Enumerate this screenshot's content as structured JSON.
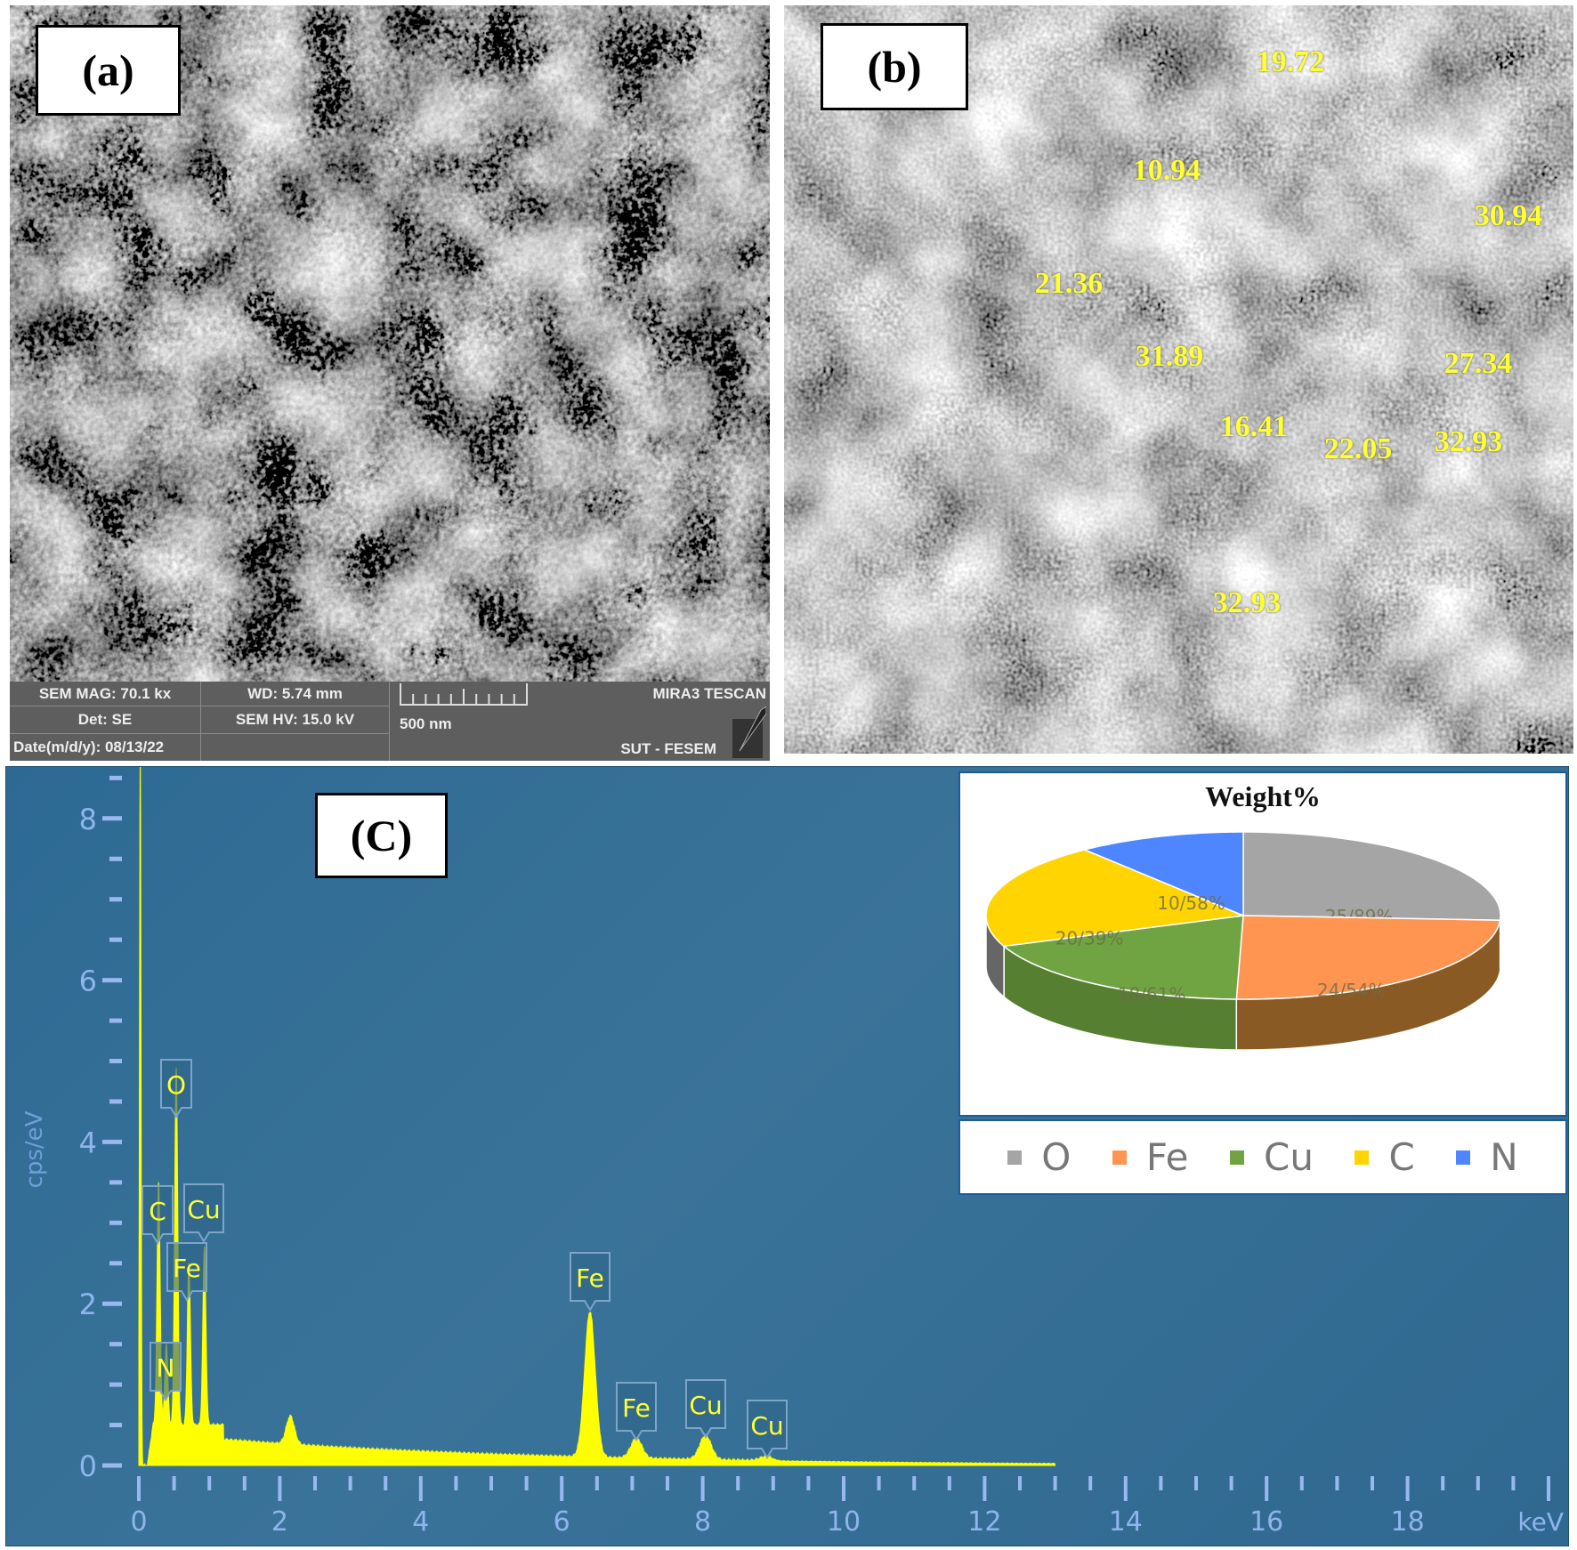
{
  "panel_a": {
    "label": "(a)",
    "info": {
      "mag": "SEM MAG: 70.1 kx",
      "wd": "WD: 5.74 mm",
      "det": "Det: SE",
      "hv": "SEM HV: 15.0 kV",
      "date": "Date(m/d/y): 08/13/22",
      "scale": "500 nm",
      "instrument": "MIRA3 TESCAN",
      "lab": "SUT - FESEM"
    }
  },
  "panel_b": {
    "label": "(b)",
    "size_labels": [
      "19.72",
      "10.94",
      "30.94",
      "21.36",
      "31.89",
      "27.34",
      "16.41",
      "22.05",
      "32.93",
      "32.93"
    ]
  },
  "panel_c": {
    "label": "(C)"
  },
  "chart_data": [
    {
      "type": "line",
      "title": "",
      "xlabel": "keV",
      "ylabel": "cps/eV",
      "xlim": [
        0,
        20
      ],
      "ylim": [
        0,
        8.5
      ],
      "x_ticks": [
        "0",
        "2",
        "4",
        "6",
        "8",
        "10",
        "12",
        "14",
        "16",
        "18"
      ],
      "y_ticks": [
        "0",
        "2",
        "4",
        "6",
        "8"
      ],
      "grid": false,
      "line_color": "#ffff00",
      "peaks": [
        {
          "element": "C",
          "kev": 0.28,
          "cps": 3.0
        },
        {
          "element": "N",
          "kev": 0.39,
          "cps": 1.0
        },
        {
          "element": "O",
          "kev": 0.53,
          "cps": 4.4
        },
        {
          "element": "Fe",
          "kev": 0.71,
          "cps": 2.0
        },
        {
          "element": "Cu",
          "kev": 0.93,
          "cps": 2.2
        },
        {
          "element": "Fe",
          "kev": 6.4,
          "cps": 1.8
        },
        {
          "element": "Fe",
          "kev": 7.06,
          "cps": 0.25
        },
        {
          "element": "Cu",
          "kev": 8.04,
          "cps": 0.3
        },
        {
          "element": "Cu",
          "kev": 8.9,
          "cps": 0.05
        }
      ],
      "unlabeled_peaks": [
        {
          "kev": 2.15,
          "cps": 0.35
        }
      ]
    },
    {
      "type": "pie",
      "title": "Weight%",
      "legend_placement": "bottom",
      "slices": [
        {
          "name": "O",
          "value": 25.89,
          "label": "25/89%",
          "color": "#a5a5a5"
        },
        {
          "name": "Fe",
          "value": 24.54,
          "label": "24/54%",
          "color": "#ff9550"
        },
        {
          "name": "Cu",
          "value": 18.61,
          "label": "18/61%",
          "color": "#70a443"
        },
        {
          "name": "C",
          "value": 20.39,
          "label": "20/39%",
          "color": "#ffd400"
        },
        {
          "name": "N",
          "value": 10.58,
          "label": "10/58%",
          "color": "#4d86ff"
        }
      ]
    }
  ]
}
